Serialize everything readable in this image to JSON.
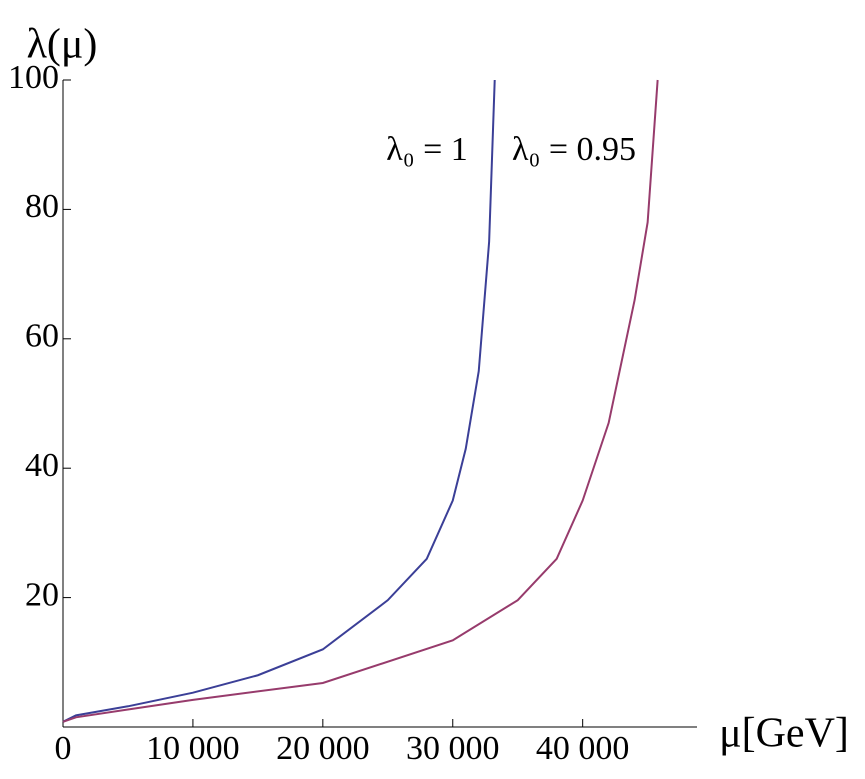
{
  "chart_data": {
    "type": "line",
    "x_label": "μ[GeV]",
    "y_label": "λ(μ)",
    "xlim": [
      0,
      48800
    ],
    "ylim": [
      0,
      100
    ],
    "xticks": [
      0,
      {
        "value": 10000,
        "label": "10 000"
      },
      {
        "value": 20000,
        "label": "20 000"
      },
      {
        "value": 30000,
        "label": "30 000"
      },
      {
        "value": 40000,
        "label": "40 000"
      }
    ],
    "yticks": [
      20,
      40,
      60,
      80,
      100
    ],
    "series": [
      {
        "name": "λ₀ = 1",
        "color": "#3b3f97",
        "x": [
          0,
          1000,
          5000,
          10000,
          15000,
          20000,
          25000,
          28000,
          30000,
          31000,
          32000,
          32800,
          33230
        ],
        "values": [
          0.8,
          1.8,
          3.2,
          5.3,
          8,
          12,
          19.6,
          26,
          35,
          43,
          55,
          75,
          100
        ]
      },
      {
        "name": "λ₀ = 0.95",
        "color": "#973b6c",
        "x": [
          0,
          1000,
          5000,
          10000,
          20000,
          30000,
          35000,
          38000,
          40000,
          42000,
          44000,
          45000,
          45770
        ],
        "values": [
          0.8,
          1.5,
          2.7,
          4.2,
          6.8,
          13.4,
          19.6,
          26,
          35,
          47,
          66,
          78,
          100
        ]
      }
    ]
  }
}
